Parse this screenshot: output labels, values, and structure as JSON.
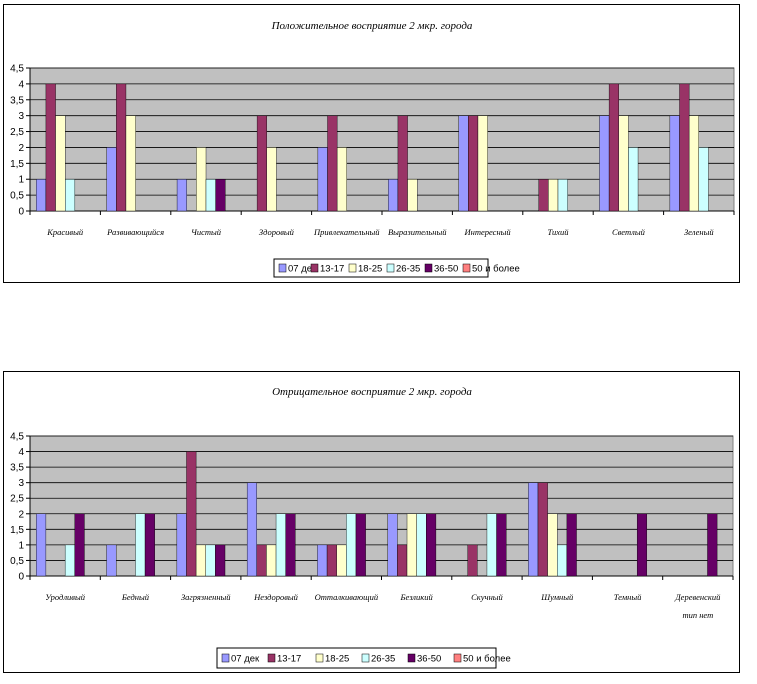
{
  "colors": {
    "plot_bg": "#C0C0C0",
    "series": [
      "#9999FF",
      "#993366",
      "#FFFFCC",
      "#CCFFFF",
      "#660066",
      "#FF8080"
    ]
  },
  "chart_data": [
    {
      "type": "bar",
      "title": "Положительное восприятие 2 мкр. города",
      "xlabel": "",
      "ylabel": "",
      "ylim": [
        0,
        4.5
      ],
      "yticks": [
        "0",
        "0,5",
        "1",
        "1,5",
        "2",
        "2,5",
        "3",
        "3,5",
        "4",
        "4,5"
      ],
      "grid": true,
      "legend_position": "bottom",
      "categories": [
        "Красивый",
        "Развивающийся",
        "Чистый",
        "Здоровый",
        "Привлекательный",
        "Выразительный",
        "Интересный",
        "Тихий",
        "Светлый",
        "Зеленый"
      ],
      "series": [
        {
          "name": "07 дек",
          "values": [
            1,
            2,
            1,
            0,
            2,
            1,
            3,
            0,
            3,
            3
          ]
        },
        {
          "name": "13-17",
          "values": [
            4,
            4,
            0,
            3,
            3,
            3,
            3,
            1,
            4,
            4
          ]
        },
        {
          "name": "18-25",
          "values": [
            3,
            3,
            2,
            2,
            2,
            1,
            3,
            1,
            3,
            3
          ]
        },
        {
          "name": "26-35",
          "values": [
            1,
            0,
            1,
            0,
            0,
            0,
            0,
            1,
            2,
            2
          ]
        },
        {
          "name": "36-50",
          "values": [
            0,
            0,
            1,
            0,
            0,
            0,
            0,
            0,
            0,
            0
          ]
        },
        {
          "name": "50 и более",
          "values": [
            0,
            0,
            0,
            0,
            0,
            0,
            0,
            0,
            0,
            0
          ]
        }
      ]
    },
    {
      "type": "bar",
      "title": "Отрицательное восприятие 2 мкр. города",
      "xlabel": "",
      "ylabel": "",
      "ylim": [
        0,
        4.5
      ],
      "yticks": [
        "0",
        "0,5",
        "1",
        "1,5",
        "2",
        "2,5",
        "3",
        "3,5",
        "4",
        "4,5"
      ],
      "grid": true,
      "legend_position": "bottom",
      "categories": [
        "Уродливый",
        "Бедный",
        "Загрязненный",
        "Нездоровый",
        "Отталкивающий",
        "Безликий",
        "Скучный",
        "Шумный",
        "Темный",
        "Деревенский тип нет"
      ],
      "series": [
        {
          "name": "07 дек",
          "values": [
            2,
            1,
            2,
            3,
            1,
            2,
            0,
            3,
            0,
            0
          ]
        },
        {
          "name": "13-17",
          "values": [
            0,
            0,
            4,
            1,
            1,
            1,
            1,
            3,
            0,
            0
          ]
        },
        {
          "name": "18-25",
          "values": [
            0,
            0,
            1,
            1,
            1,
            2,
            0,
            2,
            0,
            0
          ]
        },
        {
          "name": "26-35",
          "values": [
            1,
            2,
            1,
            2,
            2,
            2,
            2,
            1,
            0,
            0
          ]
        },
        {
          "name": "36-50",
          "values": [
            2,
            2,
            1,
            2,
            2,
            2,
            2,
            2,
            2,
            2
          ]
        },
        {
          "name": "50 и более",
          "values": [
            0,
            0,
            0,
            0,
            0,
            0,
            0,
            0,
            0,
            0
          ]
        }
      ]
    }
  ]
}
